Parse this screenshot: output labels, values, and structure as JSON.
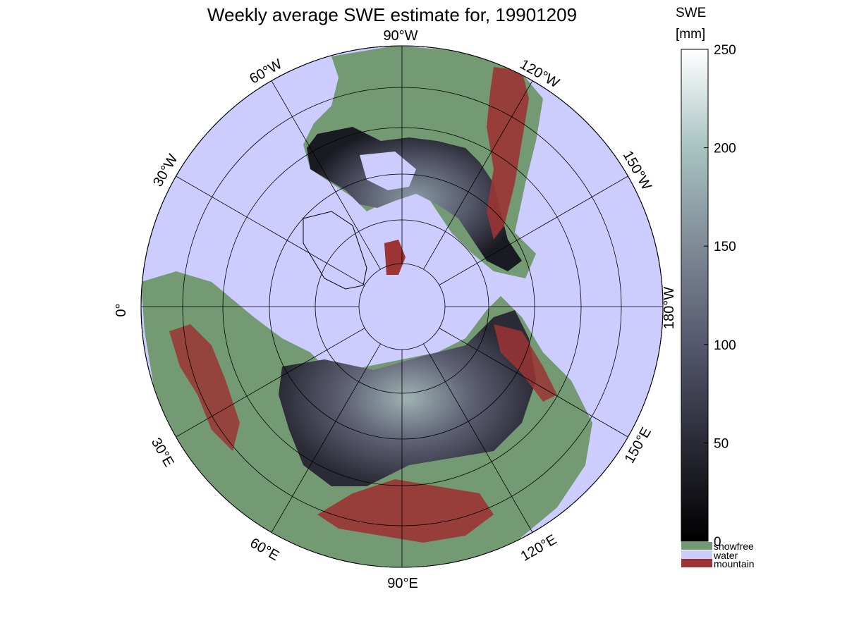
{
  "title": "Weekly average SWE estimate for, 19901209",
  "colorbar": {
    "label_line1": "SWE",
    "label_line2": "[mm]",
    "min": 0,
    "max": 250,
    "ticks": [
      {
        "value": 0,
        "label": "0"
      },
      {
        "value": 50,
        "label": "50"
      },
      {
        "value": 100,
        "label": "100"
      },
      {
        "value": 150,
        "label": "150"
      },
      {
        "value": 200,
        "label": "200"
      },
      {
        "value": 250,
        "label": "250"
      }
    ],
    "colors": [
      "#000000",
      "#2a2a36",
      "#55586e",
      "#7f8a96",
      "#a7c3c1",
      "#ffffff"
    ]
  },
  "legend": [
    {
      "label": "snowfree",
      "color": "#739a72"
    },
    {
      "label": "water",
      "color": "#ccccff"
    },
    {
      "label": "mountain",
      "color": "#9b3434"
    }
  ],
  "map": {
    "ocean_color": "#ccccff",
    "land_color": "#739a72",
    "mountain_color": "#9b3434",
    "longitude_labels": [
      {
        "text": "90°W"
      },
      {
        "text": "120°W"
      },
      {
        "text": "150°W"
      },
      {
        "text": "180°W"
      },
      {
        "text": "150°E"
      },
      {
        "text": "120°E"
      },
      {
        "text": "90°E"
      },
      {
        "text": "60°E"
      },
      {
        "text": "30°E"
      },
      {
        "text": "0°"
      },
      {
        "text": "30°W"
      },
      {
        "text": "60°W"
      }
    ]
  }
}
